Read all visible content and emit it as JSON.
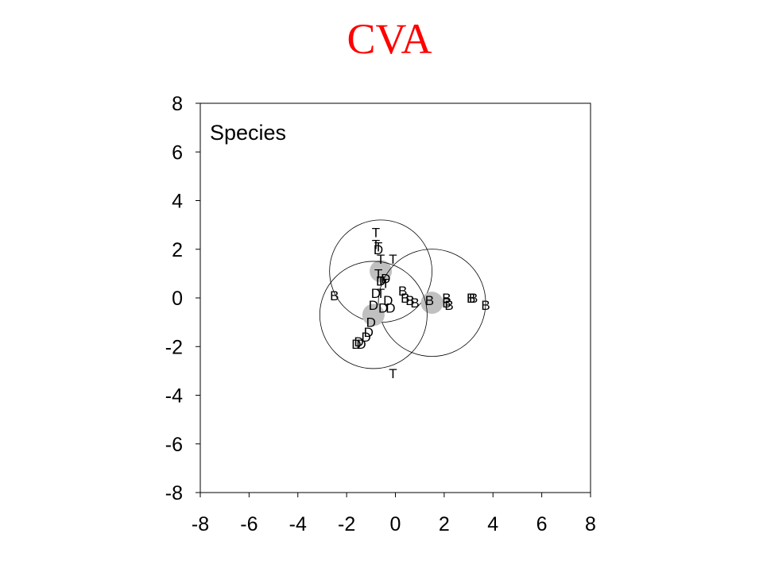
{
  "title": "CVA",
  "chart_data": {
    "type": "scatter",
    "title": "CVA",
    "panel_label": "Species",
    "xlabel": "",
    "ylabel": "",
    "xlim": [
      -8,
      8
    ],
    "ylim": [
      -8,
      8
    ],
    "x_ticks": [
      -8,
      -6,
      -4,
      -2,
      0,
      2,
      4,
      6,
      8
    ],
    "y_ticks": [
      -8,
      -6,
      -4,
      -2,
      0,
      2,
      4,
      6,
      8
    ],
    "grid": false,
    "legend": "none",
    "colors": {
      "title": "#ff0000",
      "circle_stroke": "#000000",
      "centroid_fill": "#c0c0c0"
    },
    "groups": [
      {
        "label": "T",
        "centroid": [
          -0.6,
          1.1
        ],
        "radius": 2.1
      },
      {
        "label": "B",
        "centroid": [
          1.5,
          -0.2
        ],
        "radius": 2.2
      },
      {
        "label": "D",
        "centroid": [
          -0.9,
          -0.7
        ],
        "radius": 2.2
      }
    ],
    "points": [
      {
        "label": "T",
        "x": -0.8,
        "y": 2.7
      },
      {
        "label": "T",
        "x": -0.8,
        "y": 2.2
      },
      {
        "label": "T",
        "x": -0.7,
        "y": 2.1
      },
      {
        "label": "T",
        "x": -0.6,
        "y": 1.6
      },
      {
        "label": "T",
        "x": -0.7,
        "y": 1.0
      },
      {
        "label": "T",
        "x": -0.6,
        "y": 0.7
      },
      {
        "label": "T",
        "x": -0.4,
        "y": 0.6
      },
      {
        "label": "T",
        "x": -0.6,
        "y": 0.2
      },
      {
        "label": "T",
        "x": -0.1,
        "y": 1.6
      },
      {
        "label": "T",
        "x": -0.1,
        "y": -3.1
      },
      {
        "label": "D",
        "x": -0.4,
        "y": 0.8
      },
      {
        "label": "D",
        "x": -0.6,
        "y": 0.7
      },
      {
        "label": "D",
        "x": -0.7,
        "y": 2.0
      },
      {
        "label": "D",
        "x": -0.8,
        "y": 0.2
      },
      {
        "label": "D",
        "x": -0.3,
        "y": -0.1
      },
      {
        "label": "D",
        "x": -0.9,
        "y": -0.3
      },
      {
        "label": "D",
        "x": -0.5,
        "y": -0.4
      },
      {
        "label": "D",
        "x": -0.2,
        "y": -0.4
      },
      {
        "label": "D",
        "x": -1.0,
        "y": -1.0
      },
      {
        "label": "D",
        "x": -1.1,
        "y": -1.4
      },
      {
        "label": "D",
        "x": -1.2,
        "y": -1.6
      },
      {
        "label": "D",
        "x": -1.4,
        "y": -1.9
      },
      {
        "label": "D",
        "x": -1.6,
        "y": -1.9
      },
      {
        "label": "D",
        "x": -1.5,
        "y": -1.8
      },
      {
        "label": "B",
        "x": -2.5,
        "y": 0.1
      },
      {
        "label": "B",
        "x": 0.3,
        "y": 0.3
      },
      {
        "label": "B",
        "x": 0.4,
        "y": 0.0
      },
      {
        "label": "B",
        "x": 0.6,
        "y": -0.1
      },
      {
        "label": "B",
        "x": 0.8,
        "y": -0.2
      },
      {
        "label": "B",
        "x": 1.4,
        "y": -0.1
      },
      {
        "label": "B",
        "x": 2.1,
        "y": 0.0
      },
      {
        "label": "B",
        "x": 2.1,
        "y": -0.2
      },
      {
        "label": "B",
        "x": 2.2,
        "y": -0.3
      },
      {
        "label": "B",
        "x": 3.1,
        "y": 0.0
      },
      {
        "label": "B",
        "x": 3.2,
        "y": 0.0
      },
      {
        "label": "B",
        "x": 3.7,
        "y": -0.3
      }
    ]
  }
}
